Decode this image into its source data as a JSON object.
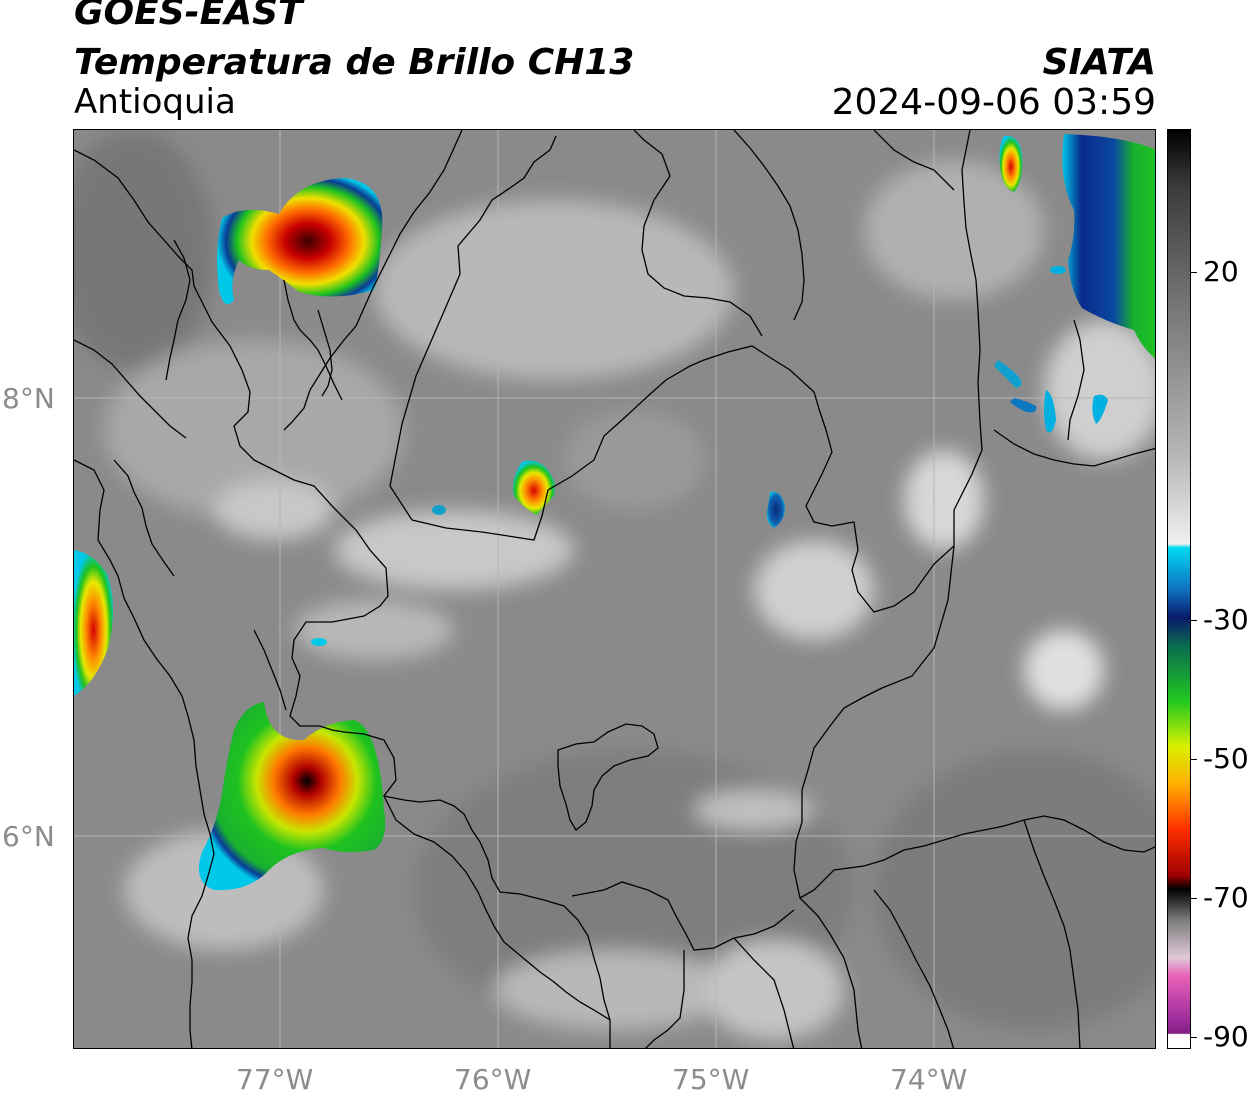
{
  "header": {
    "satellite": "GOES-EAST",
    "product": "Temperatura de Brillo CH13",
    "region": "Antioquia",
    "organization": "SIATA",
    "timestamp": "2024-09-06 03:59"
  },
  "map": {
    "lat_labels": [
      "8°N",
      "6°N"
    ],
    "lon_labels": [
      "77°W",
      "76°W",
      "75°W",
      "74°W"
    ],
    "background_color": "#8a8a8a",
    "border_color": "#000000",
    "grid_color": "#b5b5b5"
  },
  "colorbar": {
    "tick_labels": [
      "20",
      "-30",
      "-50",
      "-70",
      "-90"
    ],
    "palette": {
      "warm_gray": "#7a7a7a",
      "white": "#f5f5f5",
      "cyan": "#00c8e8",
      "blue": "#0a2a8c",
      "green": "#19c22a",
      "yellow": "#f5e600",
      "orange": "#ff8a00",
      "red": "#d40000",
      "dark_red": "#5a0000",
      "black": "#000000",
      "pink": "#e060b0",
      "purple": "#8a1a8a"
    }
  }
}
